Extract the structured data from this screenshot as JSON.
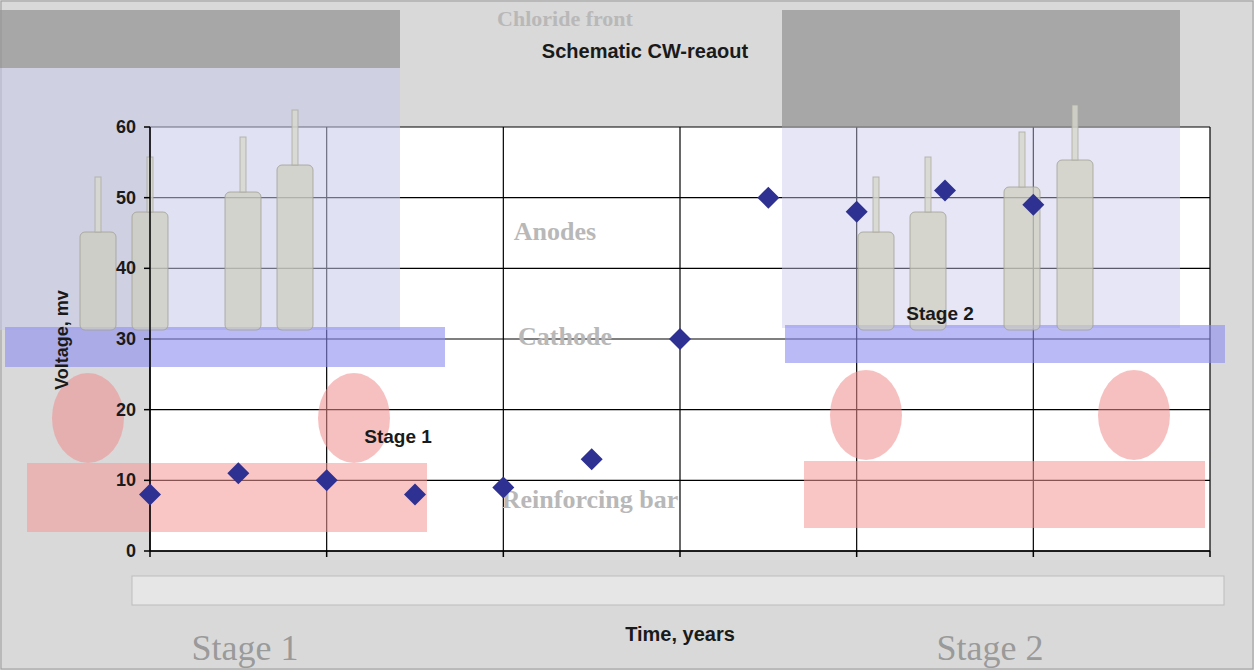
{
  "chart_data": {
    "type": "scatter",
    "title": "Schematic CW-reaout",
    "x_label": "Time, years",
    "y_label": "Voltage, mv",
    "x": [
      0,
      0.5,
      1,
      1.5,
      2,
      2.5,
      3,
      3.5,
      4,
      4.5,
      5
    ],
    "values": [
      8,
      11,
      10,
      8,
      9,
      13,
      30,
      50,
      48,
      51,
      49
    ],
    "color": "#2e3192",
    "marker": "diamond",
    "xlim": [
      0,
      6
    ],
    "xticks": [
      0,
      1,
      2,
      3,
      4,
      5,
      6
    ],
    "ylim": [
      0,
      60
    ],
    "yticks": [
      0,
      10,
      20,
      30,
      40,
      50,
      60
    ],
    "grid": true,
    "tick_labels": "y",
    "annotations": [
      "Stage 1",
      "Stage 2"
    ],
    "schematic_labels": [
      "Chloride front",
      "Anodes",
      "Cathode",
      "Reinforcing bar"
    ],
    "footer_labels": [
      "Stage 1",
      "Stage 2"
    ]
  }
}
